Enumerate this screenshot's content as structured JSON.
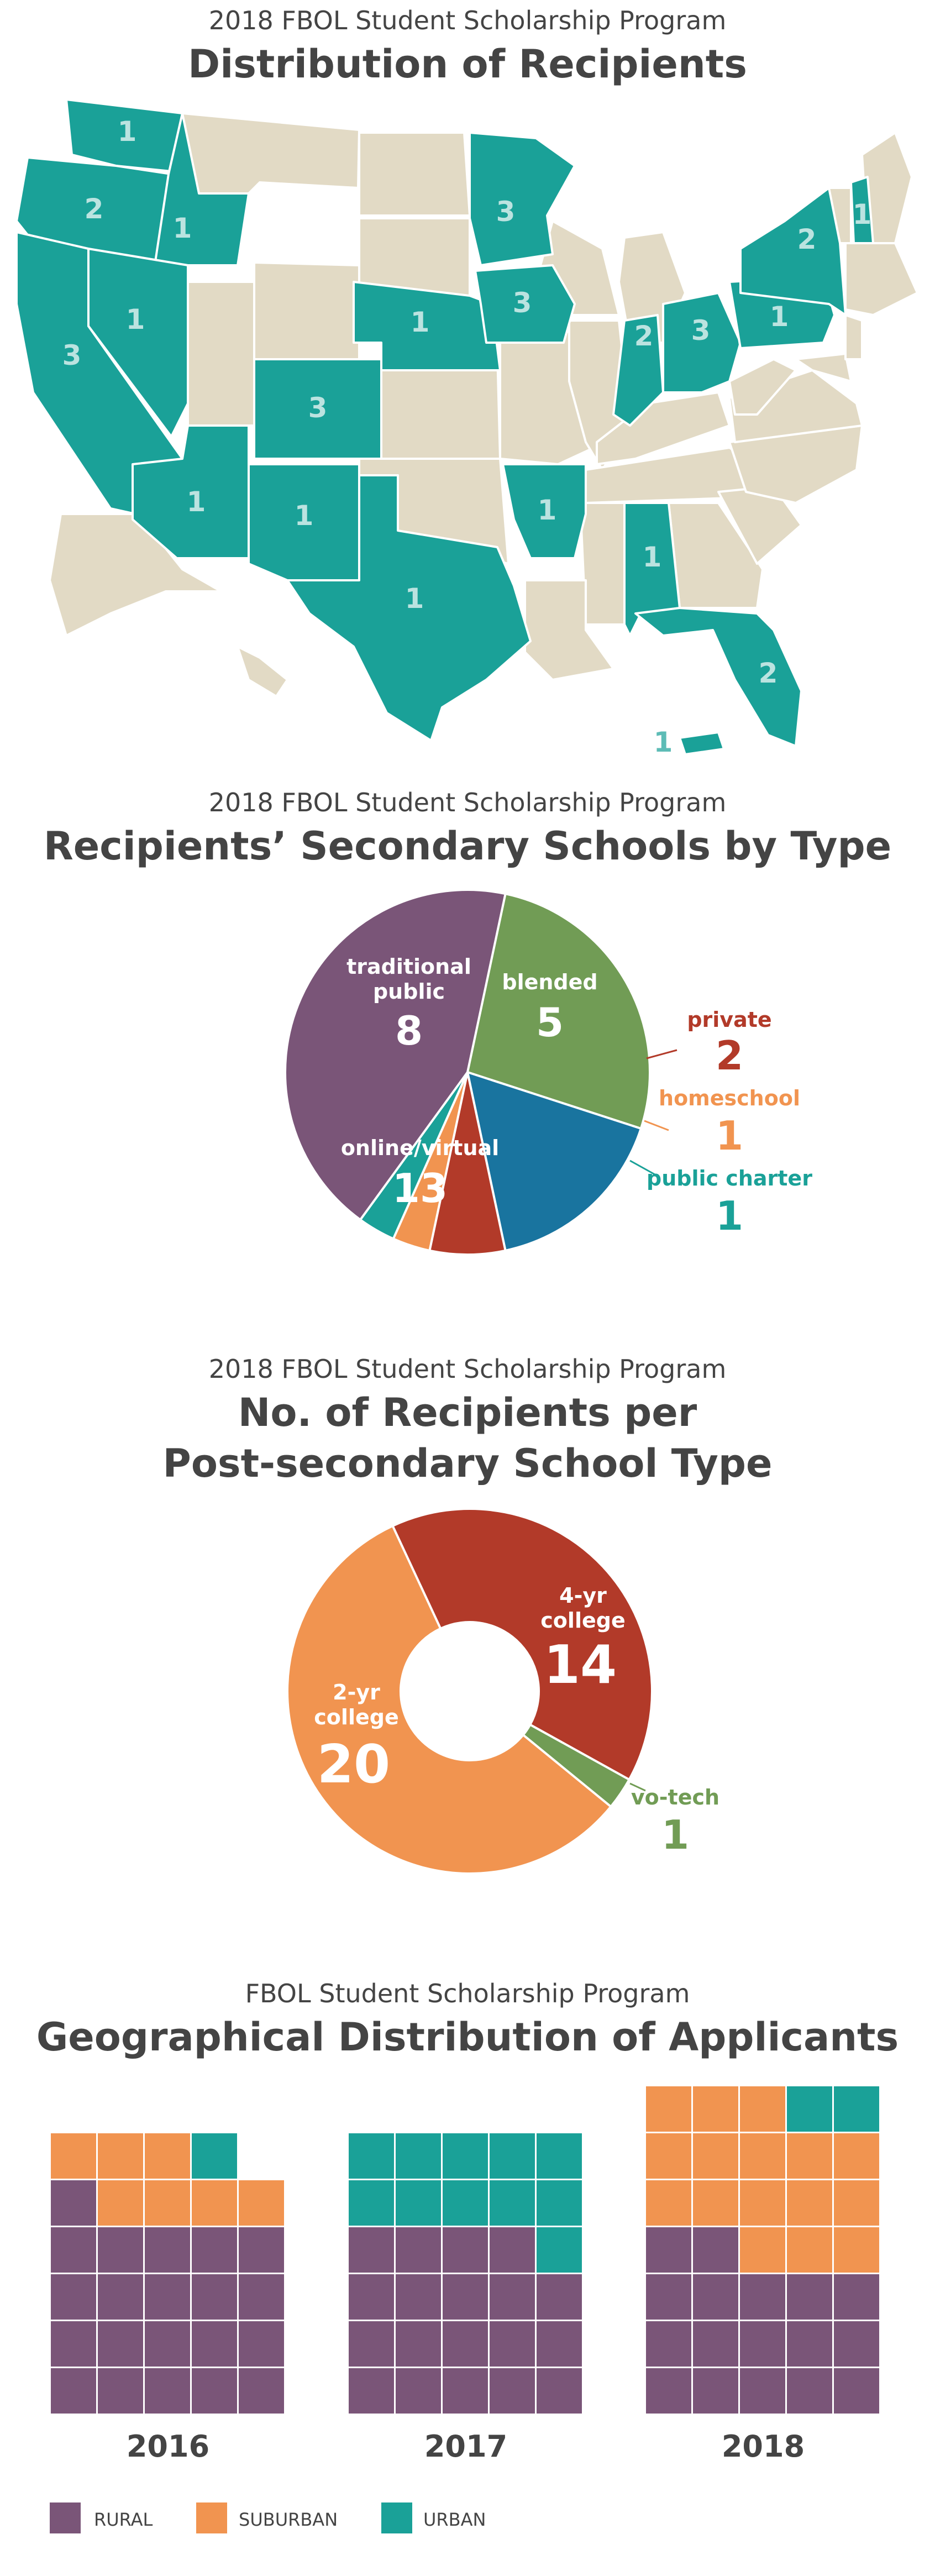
{
  "colors": {
    "teal": "#1aa198",
    "land": "#e2dac5",
    "rural": "#7a5578",
    "suburban": "#f19450",
    "urban": "#1aa198",
    "red": "#b23a29",
    "orange": "#f19450",
    "green": "#719c55",
    "blue": "#19749f",
    "purple": "#7a5578"
  },
  "map_section": {
    "subtitle": "2018 FBOL Student Scholarship Program",
    "title": "Distribution of Recipients"
  },
  "pie_section": {
    "subtitle": "2018 FBOL Student Scholarship Program",
    "title": "Recipients’ Secondary Schools by Type"
  },
  "donut_section": {
    "subtitle": "2018 FBOL Student Scholarship Program",
    "title_line1": "No. of Recipients per",
    "title_line2": "Post-secondary School Type"
  },
  "waffle_section": {
    "subtitle": "FBOL Student Scholarship Program",
    "title": "Geographical Distribution of Applicants"
  },
  "chart_data": [
    {
      "type": "map",
      "regions": [
        {
          "name": "WA",
          "value": 1
        },
        {
          "name": "OR",
          "value": 2
        },
        {
          "name": "ID",
          "value": 1
        },
        {
          "name": "CA",
          "value": 3
        },
        {
          "name": "NV",
          "value": 1
        },
        {
          "name": "AZ",
          "value": 1
        },
        {
          "name": "CO",
          "value": 3
        },
        {
          "name": "NM",
          "value": 1
        },
        {
          "name": "TX",
          "value": 1
        },
        {
          "name": "NE",
          "value": 1
        },
        {
          "name": "MN",
          "value": 3
        },
        {
          "name": "IA",
          "value": 3
        },
        {
          "name": "AR",
          "value": 1
        },
        {
          "name": "IN",
          "value": 2
        },
        {
          "name": "OH",
          "value": 3
        },
        {
          "name": "AL",
          "value": 1
        },
        {
          "name": "FL",
          "value": 2
        },
        {
          "name": "PA",
          "value": 1
        },
        {
          "name": "NY",
          "value": 2
        },
        {
          "name": "NH",
          "value": 1
        },
        {
          "name": "PR",
          "value": 1
        }
      ]
    },
    {
      "type": "pie",
      "slices": [
        {
          "label": "traditional public",
          "value": 8,
          "color": "#719c55"
        },
        {
          "label": "blended",
          "value": 5,
          "color": "#19749f"
        },
        {
          "label": "private",
          "value": 2,
          "color": "#b23a29"
        },
        {
          "label": "homeschool",
          "value": 1,
          "color": "#f19450"
        },
        {
          "label": "public charter",
          "value": 1,
          "color": "#1aa198"
        },
        {
          "label": "online/virtual",
          "value": 13,
          "color": "#7a5578"
        }
      ]
    },
    {
      "type": "donut",
      "slices": [
        {
          "label_line1": "4-yr",
          "label_line2": "college",
          "value": 14,
          "color": "#b23a29"
        },
        {
          "label_line1": "vo-tech",
          "label_line2": "",
          "value": 1,
          "color": "#719c55"
        },
        {
          "label_line1": "2-yr",
          "label_line2": "college",
          "value": 20,
          "color": "#f19450"
        }
      ]
    },
    {
      "type": "waffle",
      "legend": [
        {
          "key": "rural",
          "label": "RURAL",
          "color": "#7a5578"
        },
        {
          "key": "suburban",
          "label": "SUBURBAN",
          "color": "#f19450"
        },
        {
          "key": "urban",
          "label": "URBAN",
          "color": "#1aa198"
        }
      ],
      "years": [
        {
          "year": "2016",
          "rural": 21,
          "suburban": 7,
          "urban": 1
        },
        {
          "year": "2017",
          "rural": 19,
          "suburban": 0,
          "urban": 11
        },
        {
          "year": "2018",
          "rural": 17,
          "suburban": 16,
          "urban": 2
        }
      ]
    }
  ]
}
